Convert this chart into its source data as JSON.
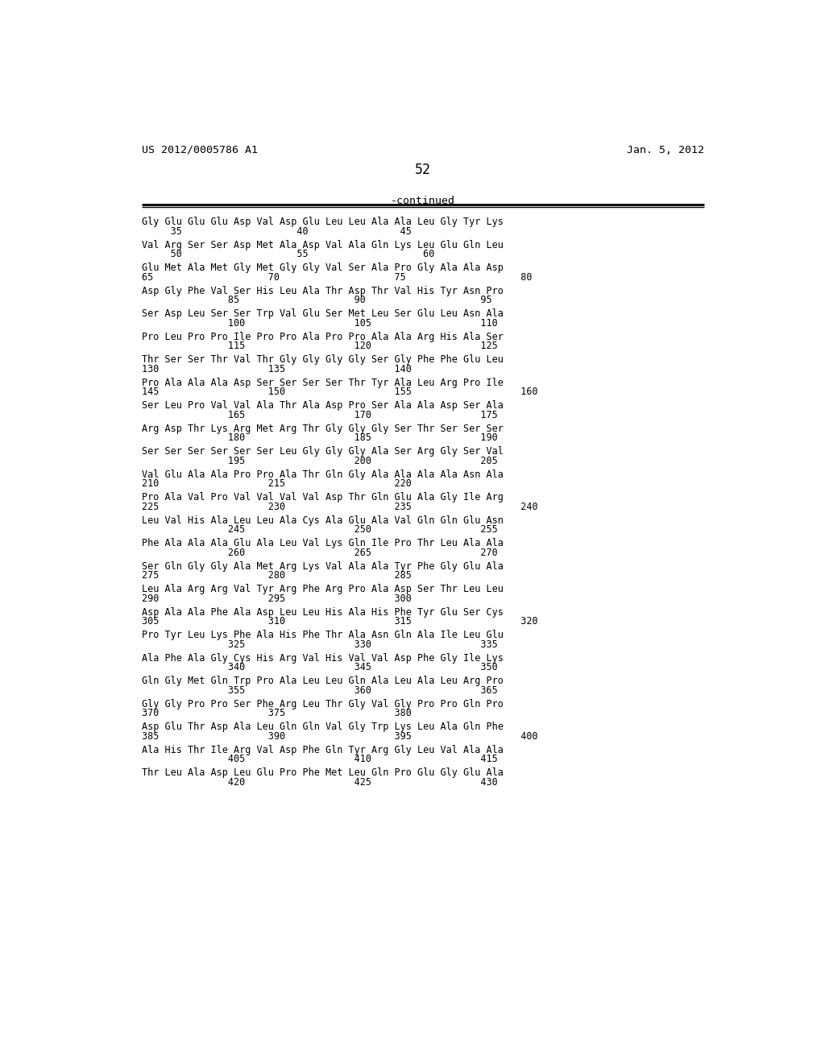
{
  "header_left": "US 2012/0005786 A1",
  "header_right": "Jan. 5, 2012",
  "page_number": "52",
  "continued_label": "-continued",
  "background_color": "#ffffff",
  "text_color": "#000000",
  "sequence_lines": [
    [
      "Gly Glu Glu Glu Asp Val Asp Glu Leu Leu Ala Ala Leu Gly Tyr Lys",
      "     35                    40                45"
    ],
    [
      "Val Arg Ser Ser Asp Met Ala Asp Val Ala Gln Lys Leu Glu Gln Leu",
      "     50                    55                    60"
    ],
    [
      "Glu Met Ala Met Gly Met Gly Gly Val Ser Ala Pro Gly Ala Ala Asp",
      "65                    70                    75                    80"
    ],
    [
      "Asp Gly Phe Val Ser His Leu Ala Thr Asp Thr Val His Tyr Asn Pro",
      "               85                    90                    95"
    ],
    [
      "Ser Asp Leu Ser Ser Trp Val Glu Ser Met Leu Ser Glu Leu Asn Ala",
      "               100                   105                   110"
    ],
    [
      "Pro Leu Pro Pro Ile Pro Pro Ala Pro Pro Ala Ala Arg His Ala Ser",
      "               115                   120                   125"
    ],
    [
      "Thr Ser Ser Thr Val Thr Gly Gly Gly Gly Ser Gly Phe Phe Glu Leu",
      "130                   135                   140"
    ],
    [
      "Pro Ala Ala Ala Asp Ser Ser Ser Ser Thr Tyr Ala Leu Arg Pro Ile",
      "145                   150                   155                   160"
    ],
    [
      "Ser Leu Pro Val Val Ala Thr Ala Asp Pro Ser Ala Ala Asp Ser Ala",
      "               165                   170                   175"
    ],
    [
      "Arg Asp Thr Lys Arg Met Arg Thr Gly Gly Gly Ser Thr Ser Ser Ser",
      "               180                   185                   190"
    ],
    [
      "Ser Ser Ser Ser Ser Ser Leu Gly Gly Gly Ala Ser Arg Gly Ser Val",
      "               195                   200                   205"
    ],
    [
      "Val Glu Ala Ala Pro Pro Ala Thr Gln Gly Ala Ala Ala Ala Asn Ala",
      "210                   215                   220"
    ],
    [
      "Pro Ala Val Pro Val Val Val Val Asp Thr Gln Glu Ala Gly Ile Arg",
      "225                   230                   235                   240"
    ],
    [
      "Leu Val His Ala Leu Leu Ala Cys Ala Glu Ala Val Gln Gln Glu Asn",
      "               245                   250                   255"
    ],
    [
      "Phe Ala Ala Ala Glu Ala Leu Val Lys Gln Ile Pro Thr Leu Ala Ala",
      "               260                   265                   270"
    ],
    [
      "Ser Gln Gly Gly Ala Met Arg Lys Val Ala Ala Tyr Phe Gly Glu Ala",
      "275                   280                   285"
    ],
    [
      "Leu Ala Arg Arg Val Tyr Arg Phe Arg Pro Ala Asp Ser Thr Leu Leu",
      "290                   295                   300"
    ],
    [
      "Asp Ala Ala Phe Ala Asp Leu Leu His Ala His Phe Tyr Glu Ser Cys",
      "305                   310                   315                   320"
    ],
    [
      "Pro Tyr Leu Lys Phe Ala His Phe Thr Ala Asn Gln Ala Ile Leu Glu",
      "               325                   330                   335"
    ],
    [
      "Ala Phe Ala Gly Cys His Arg Val His Val Val Asp Phe Gly Ile Lys",
      "               340                   345                   350"
    ],
    [
      "Gln Gly Met Gln Trp Pro Ala Leu Leu Gln Ala Leu Ala Leu Arg Pro",
      "               355                   360                   365"
    ],
    [
      "Gly Gly Pro Pro Ser Phe Arg Leu Thr Gly Val Gly Pro Pro Gln Pro",
      "370                   375                   380"
    ],
    [
      "Asp Glu Thr Asp Ala Leu Gln Gln Val Gly Trp Lys Leu Ala Gln Phe",
      "385                   390                   395                   400"
    ],
    [
      "Ala His Thr Ile Arg Val Asp Phe Gln Tyr Arg Gly Leu Val Ala Ala",
      "               405                   410                   415"
    ],
    [
      "Thr Leu Ala Asp Leu Glu Pro Phe Met Leu Gln Pro Glu Gly Glu Ala",
      "               420                   425                   430"
    ]
  ]
}
